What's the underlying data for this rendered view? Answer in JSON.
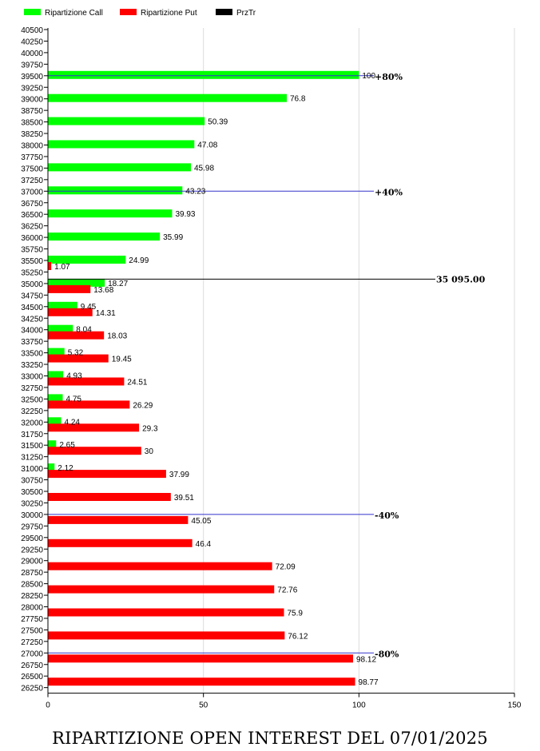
{
  "chart_data": {
    "type": "bar",
    "orientation": "horizontal",
    "title": "RIPARTIZIONE OPEN INTEREST DEL 07/01/2025",
    "strikes": [
      40500,
      40250,
      40000,
      39750,
      39500,
      39250,
      39000,
      38750,
      38500,
      38250,
      38000,
      37750,
      37500,
      37250,
      37000,
      36750,
      36500,
      36250,
      36000,
      35750,
      35500,
      35250,
      35000,
      34750,
      34500,
      34250,
      34000,
      33750,
      33500,
      33250,
      33000,
      32750,
      32500,
      32250,
      32000,
      31750,
      31500,
      31250,
      31000,
      30750,
      30500,
      30250,
      30000,
      29750,
      29500,
      29250,
      29000,
      28750,
      28500,
      28250,
      28000,
      27750,
      27500,
      27250,
      27000,
      26750,
      26500,
      26250
    ],
    "series": [
      {
        "name": "Ripartizione Call",
        "color": "#00ff00",
        "points": [
          {
            "strike": 39500,
            "value": 100,
            "label": "100"
          },
          {
            "strike": 39000,
            "value": 76.8,
            "label": "76.8"
          },
          {
            "strike": 38500,
            "value": 50.39,
            "label": "50.39"
          },
          {
            "strike": 38000,
            "value": 47.08,
            "label": "47.08"
          },
          {
            "strike": 37500,
            "value": 45.98,
            "label": "45.98"
          },
          {
            "strike": 37000,
            "value": 43.23,
            "label": "43.23"
          },
          {
            "strike": 36500,
            "value": 39.93,
            "label": "39.93"
          },
          {
            "strike": 36000,
            "value": 35.99,
            "label": "35.99"
          },
          {
            "strike": 35500,
            "value": 24.99,
            "label": "24.99"
          },
          {
            "strike": 35000,
            "value": 18.27,
            "label": "18.27"
          },
          {
            "strike": 34500,
            "value": 9.45,
            "label": "9.45"
          },
          {
            "strike": 34000,
            "value": 8.04,
            "label": "8.04"
          },
          {
            "strike": 33500,
            "value": 5.32,
            "label": "5.32"
          },
          {
            "strike": 33000,
            "value": 4.93,
            "label": "4.93"
          },
          {
            "strike": 32500,
            "value": 4.75,
            "label": "4.75"
          },
          {
            "strike": 32000,
            "value": 4.24,
            "label": "4.24"
          },
          {
            "strike": 31500,
            "value": 2.65,
            "label": "2.65"
          },
          {
            "strike": 31000,
            "value": 2.12,
            "label": "2.12"
          }
        ]
      },
      {
        "name": "Ripartizione Put",
        "color": "#ff0000",
        "points": [
          {
            "strike": 35500,
            "value": 1.07,
            "label": "1.07"
          },
          {
            "strike": 35000,
            "value": 13.68,
            "label": "13.68"
          },
          {
            "strike": 34500,
            "value": 14.31,
            "label": "14.31"
          },
          {
            "strike": 34000,
            "value": 18.03,
            "label": "18.03"
          },
          {
            "strike": 33500,
            "value": 19.45,
            "label": "19.45"
          },
          {
            "strike": 33000,
            "value": 24.51,
            "label": "24.51"
          },
          {
            "strike": 32500,
            "value": 26.29,
            "label": "26.29"
          },
          {
            "strike": 32000,
            "value": 29.3,
            "label": "29.3"
          },
          {
            "strike": 31500,
            "value": 30,
            "label": "30"
          },
          {
            "strike": 31000,
            "value": 37.99,
            "label": "37.99"
          },
          {
            "strike": 30500,
            "value": 39.51,
            "label": "39.51"
          },
          {
            "strike": 30000,
            "value": 45.05,
            "label": "45.05"
          },
          {
            "strike": 29500,
            "value": 46.4,
            "label": "46.4"
          },
          {
            "strike": 29000,
            "value": 72.09,
            "label": "72.09"
          },
          {
            "strike": 28500,
            "value": 72.76,
            "label": "72.76"
          },
          {
            "strike": 28000,
            "value": 75.9,
            "label": "75.9"
          },
          {
            "strike": 27500,
            "value": 76.12,
            "label": "76.12"
          },
          {
            "strike": 27000,
            "value": 98.12,
            "label": "98.12"
          },
          {
            "strike": 26500,
            "value": 98.77,
            "label": "98.77"
          }
        ]
      },
      {
        "name": "PrzTr",
        "color": "#000000",
        "points": [
          {
            "strike": 35095,
            "label": "35 095.00"
          }
        ]
      }
    ],
    "reference_lines": [
      {
        "strike": 39500,
        "label": "+80%",
        "color": "#3333cc"
      },
      {
        "strike": 37000,
        "label": "+40%",
        "color": "#3333cc"
      },
      {
        "strike": 30000,
        "label": "-40%",
        "color": "#3333cc"
      },
      {
        "strike": 27000,
        "label": "-80%",
        "color": "#3333cc"
      }
    ],
    "xlim": [
      0,
      150
    ],
    "xticks": [
      0,
      50,
      100,
      150
    ],
    "ylim": [
      26250,
      40500
    ],
    "grid": "vertical",
    "legend_position": "top-left"
  }
}
